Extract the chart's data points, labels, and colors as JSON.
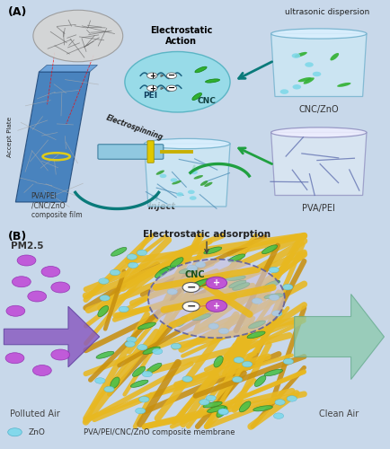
{
  "bg_color": "#c8d8ea",
  "title_A": "(A)",
  "title_B": "(B)",
  "label_accept_plate": "Accept Plate",
  "label_composite_film": "PVA/PEI\n/CNC/ZnO\ncomposite film",
  "label_electrospinning": "Electrospinning",
  "label_electrostatic_action": "Electrostatic\nAction",
  "label_ultrasonic": "ultrasonic dispersion",
  "label_cnc_zno": "CNC/ZnO",
  "label_pva_pei_beaker": "PVA/PEI",
  "label_inject": "Inject",
  "label_pei": "PEI",
  "label_cnc": "CNC",
  "label_pm25": "PM2.5",
  "label_polluted": "Polluted Air",
  "label_clean": "Clean Air",
  "label_electrostatic_ads": "Electrostatic adsorption",
  "label_cnc_b": "CNC",
  "label_zno_legend": "ZnO",
  "label_membrane": "PVA/PEI/CNC/ZnO composite membrane",
  "color_arrow_green": "#20a040",
  "color_arrow_teal": "#0a7a7a",
  "color_yellow_fiber": "#e8b820",
  "color_green_cnc": "#50c050",
  "color_purple_pm": "#c060d0",
  "color_zno": "#80d8e8",
  "color_sphere_bg": "#a0e8e0"
}
